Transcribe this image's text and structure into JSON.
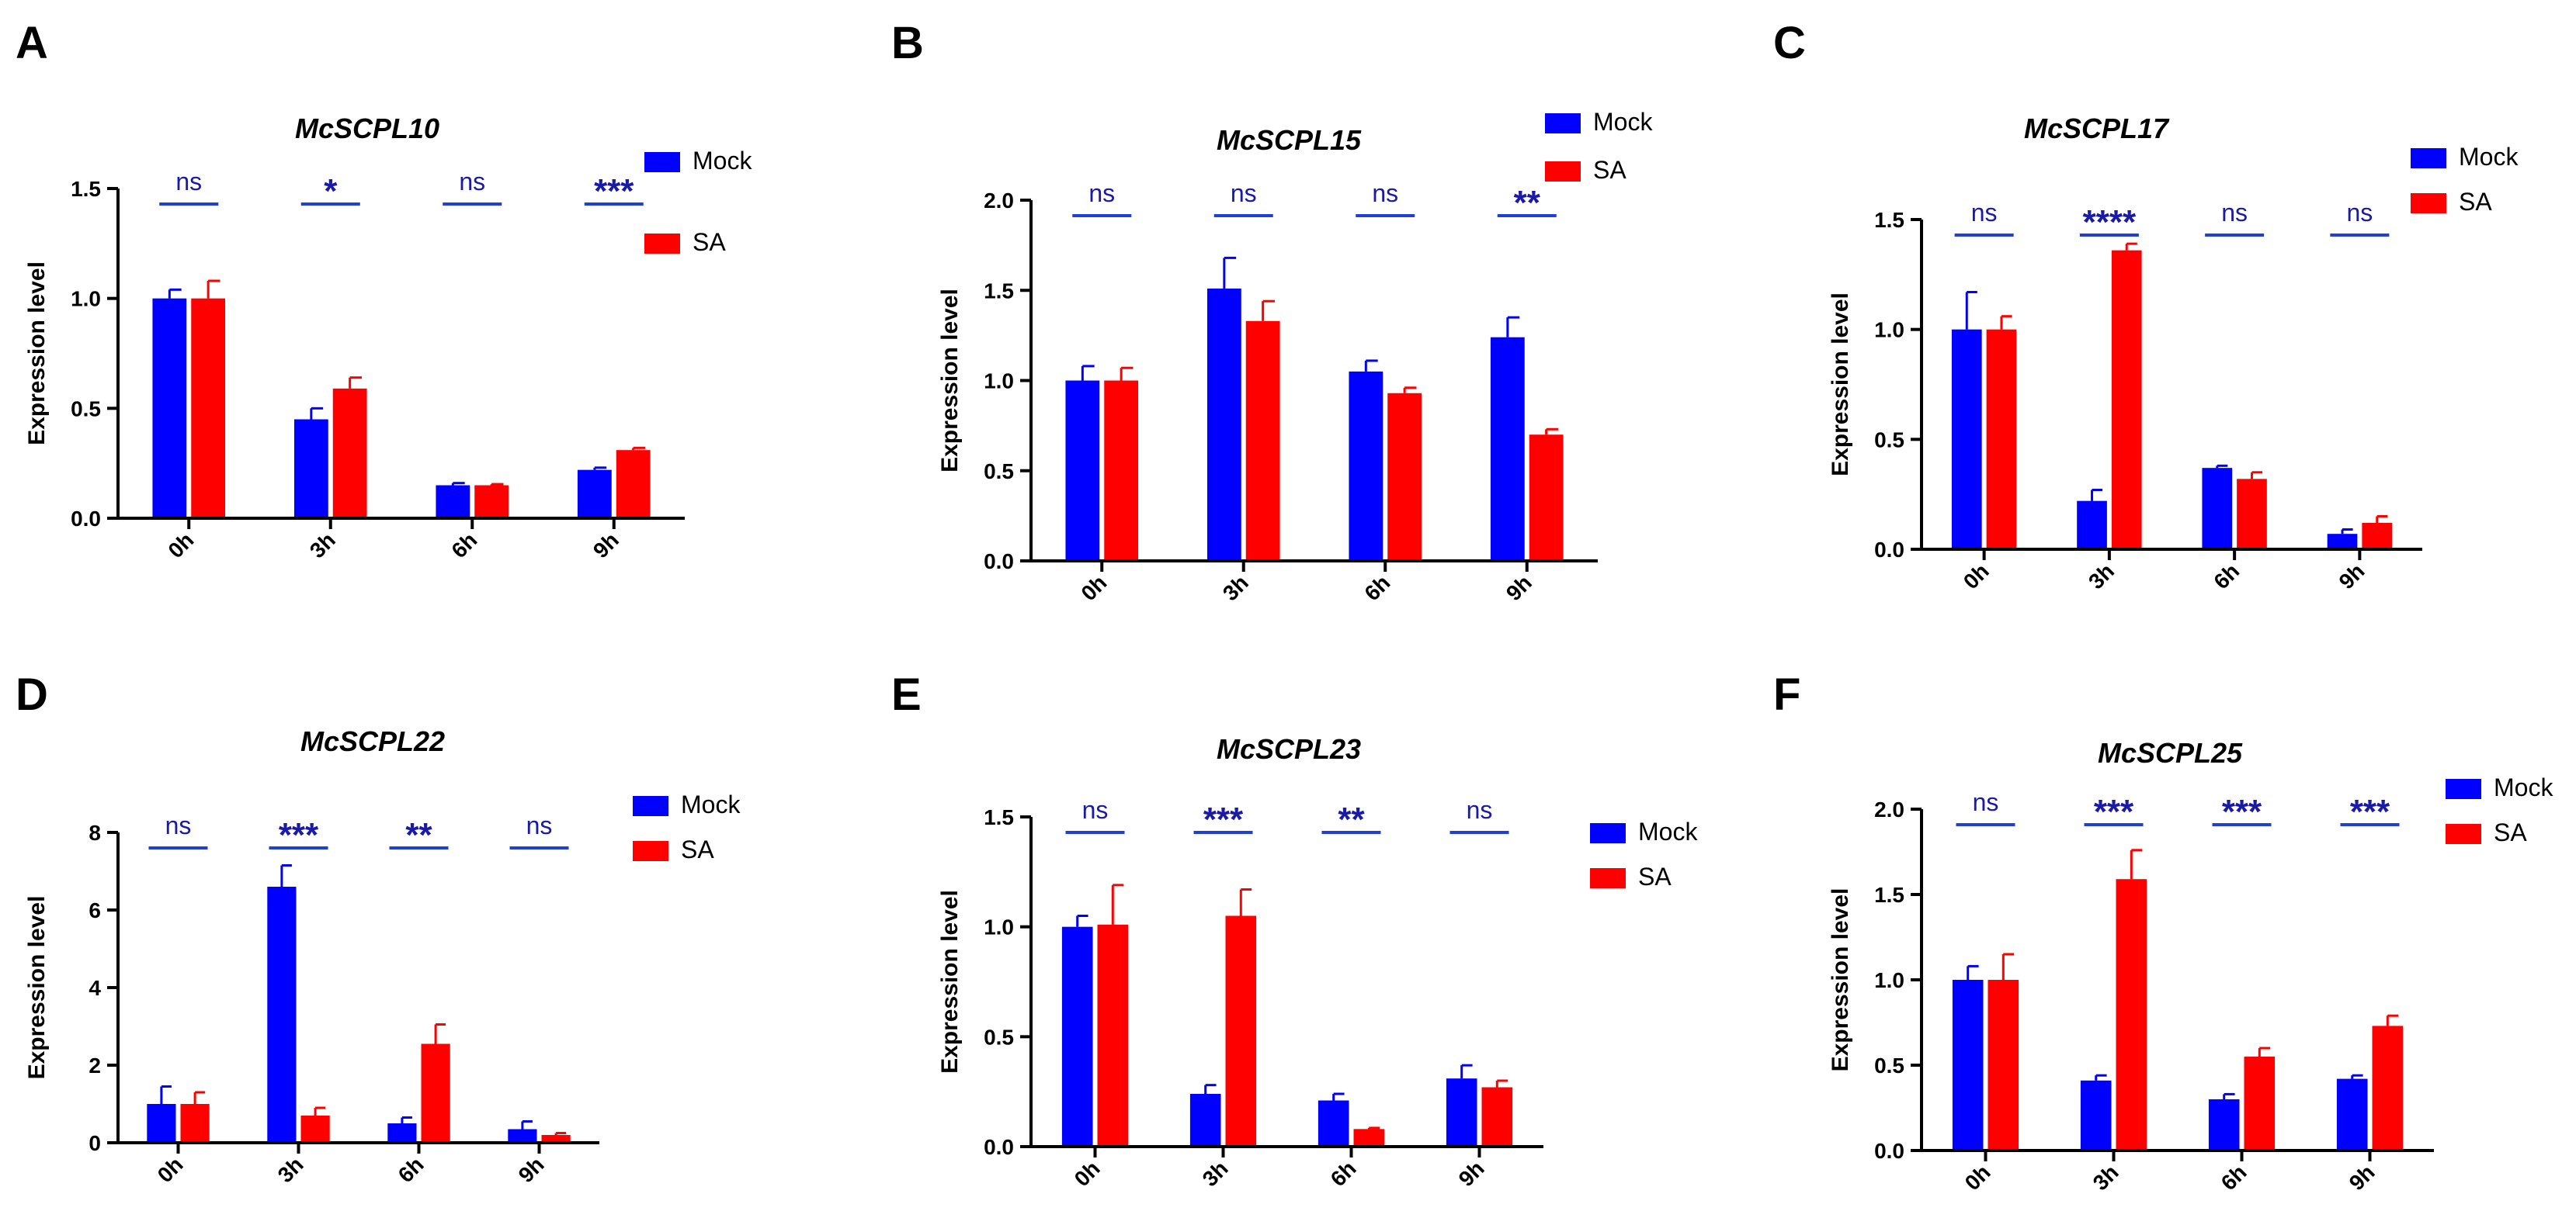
{
  "figure": {
    "colors": {
      "mock": "#0000ff",
      "sa": "#ff0000",
      "annot": "#1a1aa8",
      "axis": "#000000"
    }
  },
  "chart_data": [
    {
      "type": "bar",
      "panel": "A",
      "title": "McSCPL10",
      "ylabel": "Expression level",
      "xlabel": "",
      "categories": [
        "0h",
        "3h",
        "6h",
        "9h"
      ],
      "series": [
        {
          "name": "Mock",
          "values": [
            1.0,
            0.45,
            0.15,
            0.22
          ],
          "errors": [
            0.04,
            0.05,
            0.01,
            0.01
          ]
        },
        {
          "name": "SA",
          "values": [
            1.0,
            0.59,
            0.15,
            0.31
          ],
          "errors": [
            0.08,
            0.05,
            0.005,
            0.01
          ]
        }
      ],
      "significance": [
        "ns",
        "*",
        "ns",
        "***"
      ],
      "ylim": [
        0,
        1.5
      ],
      "yticks": [
        0,
        0.5,
        1.0,
        1.5
      ],
      "tick_labels": [
        "0.0",
        "0.5",
        "1.0",
        "1.5"
      ],
      "legend": {
        "position": "top-right",
        "entries": [
          "Mock",
          "SA"
        ]
      }
    },
    {
      "type": "bar",
      "panel": "B",
      "title": "McSCPL15",
      "ylabel": "Expression level",
      "xlabel": "",
      "categories": [
        "0h",
        "3h",
        "6h",
        "9h"
      ],
      "series": [
        {
          "name": "Mock",
          "values": [
            1.0,
            1.51,
            1.05,
            1.24
          ],
          "errors": [
            0.08,
            0.17,
            0.06,
            0.11
          ]
        },
        {
          "name": "SA",
          "values": [
            1.0,
            1.33,
            0.93,
            0.7
          ],
          "errors": [
            0.07,
            0.11,
            0.03,
            0.03
          ]
        }
      ],
      "significance": [
        "ns",
        "ns",
        "ns",
        "**"
      ],
      "ylim": [
        0,
        2.0
      ],
      "yticks": [
        0,
        0.5,
        1.0,
        1.5,
        2.0
      ],
      "tick_labels": [
        "0.0",
        "0.5",
        "1.0",
        "1.5",
        "2.0"
      ],
      "legend": {
        "position": "top-right",
        "entries": [
          "Mock",
          "SA"
        ]
      }
    },
    {
      "type": "bar",
      "panel": "C",
      "title": "McSCPL17",
      "ylabel": "Expression level",
      "xlabel": "",
      "categories": [
        "0h",
        "3h",
        "6h",
        "9h"
      ],
      "series": [
        {
          "name": "Mock",
          "values": [
            1.0,
            0.22,
            0.37,
            0.07
          ],
          "errors": [
            0.17,
            0.05,
            0.01,
            0.02
          ]
        },
        {
          "name": "SA",
          "values": [
            1.0,
            1.36,
            0.32,
            0.12
          ],
          "errors": [
            0.06,
            0.03,
            0.03,
            0.03
          ]
        }
      ],
      "significance": [
        "ns",
        "****",
        "ns",
        "ns"
      ],
      "ylim": [
        0,
        1.5
      ],
      "yticks": [
        0,
        0.5,
        1.0,
        1.5
      ],
      "tick_labels": [
        "0.0",
        "0.5",
        "1.0",
        "1.5"
      ],
      "legend": {
        "position": "top-right",
        "entries": [
          "Mock",
          "SA"
        ]
      }
    },
    {
      "type": "bar",
      "panel": "D",
      "title": "McSCPL22",
      "ylabel": "Expression level",
      "xlabel": "",
      "categories": [
        "0h",
        "3h",
        "6h",
        "9h"
      ],
      "series": [
        {
          "name": "Mock",
          "values": [
            1.0,
            6.6,
            0.5,
            0.35
          ],
          "errors": [
            0.45,
            0.55,
            0.15,
            0.2
          ]
        },
        {
          "name": "SA",
          "values": [
            1.0,
            0.7,
            2.55,
            0.2
          ],
          "errors": [
            0.3,
            0.2,
            0.5,
            0.05
          ]
        }
      ],
      "significance": [
        "ns",
        "***",
        "**",
        "ns"
      ],
      "ylim": [
        0,
        8
      ],
      "yticks": [
        0,
        2,
        4,
        6,
        8
      ],
      "tick_labels": [
        "0",
        "2",
        "4",
        "6",
        "8"
      ],
      "legend": {
        "position": "top-right",
        "entries": [
          "Mock",
          "SA"
        ]
      }
    },
    {
      "type": "bar",
      "panel": "E",
      "title": "McSCPL23",
      "ylabel": "Expression level",
      "xlabel": "",
      "categories": [
        "0h",
        "3h",
        "6h",
        "9h"
      ],
      "series": [
        {
          "name": "Mock",
          "values": [
            1.0,
            0.24,
            0.21,
            0.31
          ],
          "errors": [
            0.05,
            0.04,
            0.03,
            0.06
          ]
        },
        {
          "name": "SA",
          "values": [
            1.01,
            1.05,
            0.08,
            0.27
          ],
          "errors": [
            0.18,
            0.12,
            0.005,
            0.03
          ]
        }
      ],
      "significance": [
        "ns",
        "***",
        "**",
        "ns"
      ],
      "ylim": [
        0,
        1.5
      ],
      "yticks": [
        0,
        0.5,
        1.0,
        1.5
      ],
      "tick_labels": [
        "0.0",
        "0.5",
        "1.0",
        "1.5"
      ],
      "legend": {
        "position": "top-right",
        "entries": [
          "Mock",
          "SA"
        ]
      }
    },
    {
      "type": "bar",
      "panel": "F",
      "title": "McSCPL25",
      "ylabel": "Expression level",
      "xlabel": "",
      "categories": [
        "0h",
        "3h",
        "6h",
        "9h"
      ],
      "series": [
        {
          "name": "Mock",
          "values": [
            1.0,
            0.41,
            0.3,
            0.42
          ],
          "errors": [
            0.08,
            0.03,
            0.03,
            0.02
          ]
        },
        {
          "name": "SA",
          "values": [
            1.0,
            1.59,
            0.55,
            0.73
          ],
          "errors": [
            0.15,
            0.17,
            0.05,
            0.06
          ]
        }
      ],
      "significance": [
        "ns",
        "***",
        "***",
        "***"
      ],
      "ylim": [
        0,
        2.0
      ],
      "yticks": [
        0,
        0.5,
        1.0,
        1.5,
        2.0
      ],
      "tick_labels": [
        "0.0",
        "0.5",
        "1.0",
        "1.5",
        "2.0"
      ],
      "legend": {
        "position": "top-right",
        "entries": [
          "Mock",
          "SA"
        ]
      }
    }
  ]
}
